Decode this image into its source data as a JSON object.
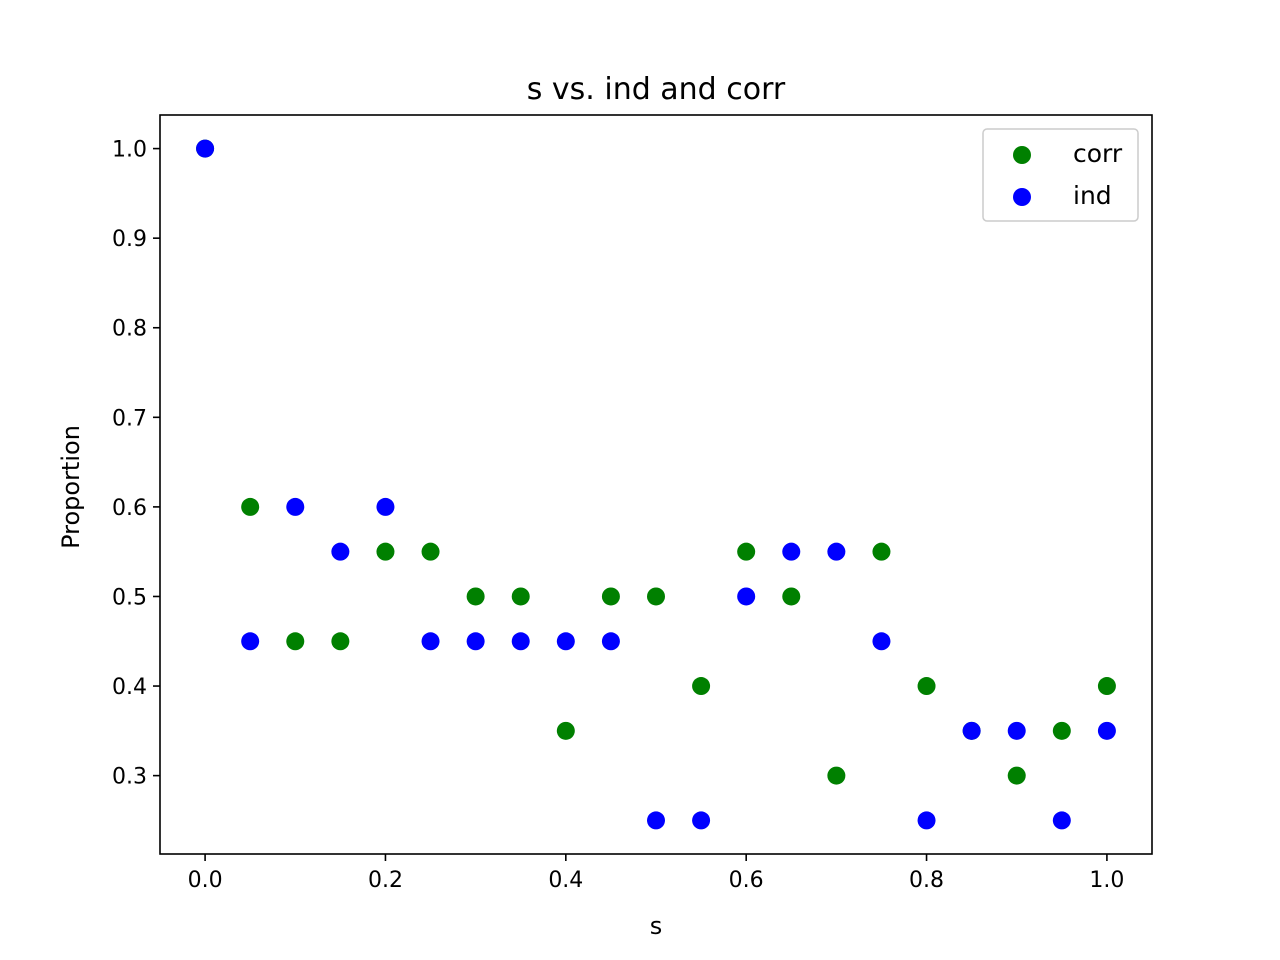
{
  "chart_data": {
    "type": "scatter",
    "title": "s vs. ind and corr",
    "xlabel": "s",
    "ylabel": "Proportion",
    "xlim": [
      -0.05,
      1.05
    ],
    "ylim": [
      0.2125,
      1.0375
    ],
    "xticks": [
      0.0,
      0.2,
      0.4,
      0.6,
      0.8,
      1.0
    ],
    "xtick_labels": [
      "0.0",
      "0.2",
      "0.4",
      "0.6",
      "0.8",
      "1.0"
    ],
    "yticks": [
      0.3,
      0.4,
      0.5,
      0.6,
      0.7,
      0.8,
      0.9,
      1.0
    ],
    "ytick_labels": [
      "0.3",
      "0.4",
      "0.5",
      "0.6",
      "0.7",
      "0.8",
      "0.9",
      "1.0"
    ],
    "grid": false,
    "legend_position": "top-right",
    "series": [
      {
        "name": "corr",
        "color": "#008000",
        "x": [
          0.0,
          0.05,
          0.1,
          0.15,
          0.2,
          0.25,
          0.3,
          0.35,
          0.4,
          0.45,
          0.5,
          0.55,
          0.6,
          0.65,
          0.7,
          0.75,
          0.8,
          0.85,
          0.9,
          0.95,
          1.0
        ],
        "y": [
          1.0,
          0.6,
          0.45,
          0.45,
          0.55,
          0.55,
          0.5,
          0.5,
          0.35,
          0.5,
          0.5,
          0.4,
          0.55,
          0.5,
          0.3,
          0.55,
          0.4,
          0.35,
          0.3,
          0.35,
          0.4
        ]
      },
      {
        "name": "ind",
        "color": "#0000ff",
        "x": [
          0.0,
          0.05,
          0.1,
          0.15,
          0.2,
          0.25,
          0.3,
          0.35,
          0.4,
          0.45,
          0.5,
          0.55,
          0.6,
          0.65,
          0.7,
          0.75,
          0.8,
          0.85,
          0.9,
          0.95,
          1.0
        ],
        "y": [
          1.0,
          0.45,
          0.6,
          0.55,
          0.6,
          0.45,
          0.45,
          0.45,
          0.45,
          0.45,
          0.25,
          0.25,
          0.5,
          0.55,
          0.55,
          0.45,
          0.25,
          0.35,
          0.35,
          0.25,
          0.35
        ]
      }
    ]
  }
}
